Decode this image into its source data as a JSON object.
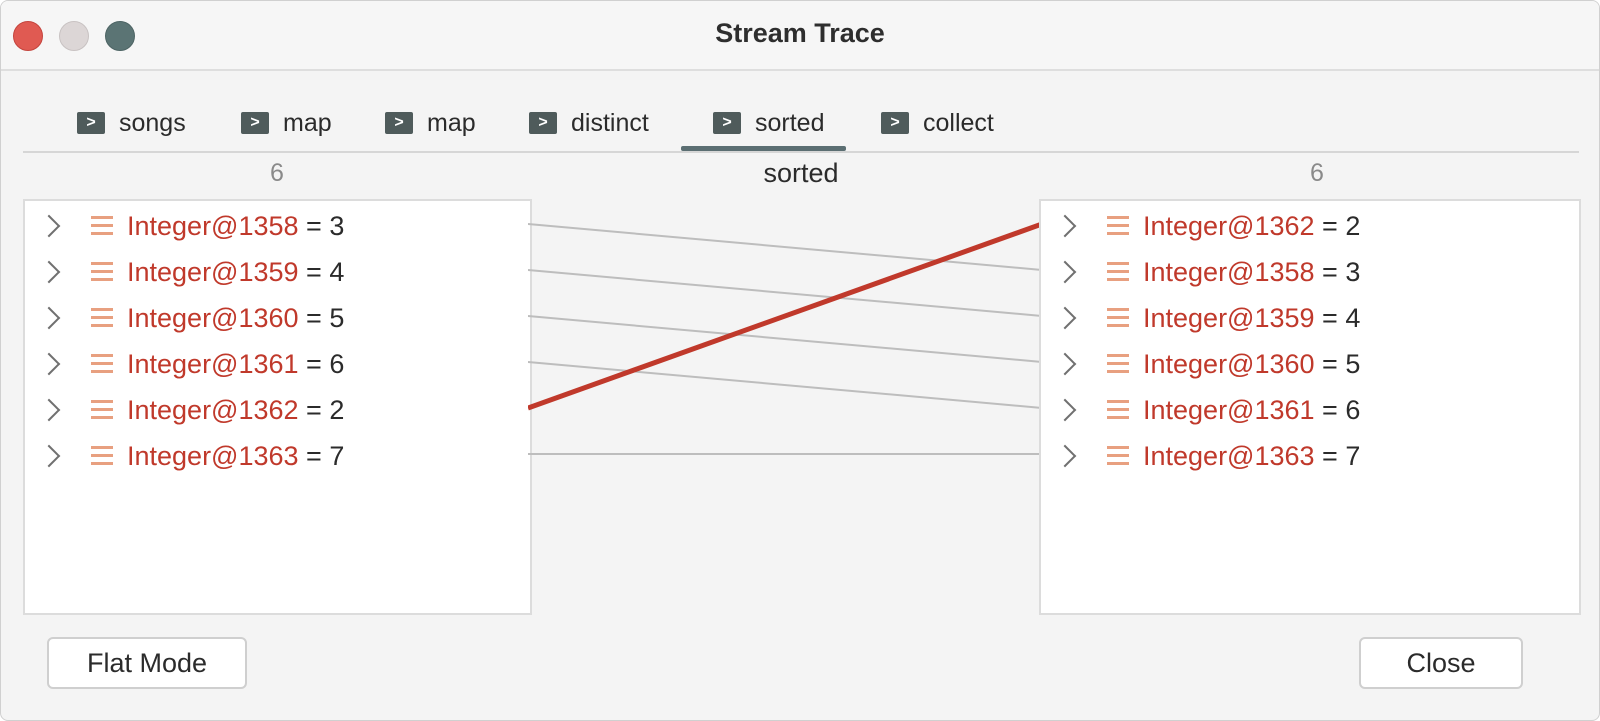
{
  "window": {
    "title": "Stream Trace"
  },
  "tabs": [
    {
      "label": "songs",
      "active": false
    },
    {
      "label": "map",
      "active": false
    },
    {
      "label": "map",
      "active": false
    },
    {
      "label": "distinct",
      "active": false
    },
    {
      "label": "sorted",
      "active": true
    },
    {
      "label": "collect",
      "active": false
    }
  ],
  "center": {
    "label": "sorted"
  },
  "left_panel": {
    "count": "6",
    "items": [
      {
        "name": "Integer@1358",
        "value": "3"
      },
      {
        "name": "Integer@1359",
        "value": "4"
      },
      {
        "name": "Integer@1360",
        "value": "5"
      },
      {
        "name": "Integer@1361",
        "value": "6"
      },
      {
        "name": "Integer@1362",
        "value": "2"
      },
      {
        "name": "Integer@1363",
        "value": "7"
      }
    ]
  },
  "right_panel": {
    "count": "6",
    "items": [
      {
        "name": "Integer@1362",
        "value": "2"
      },
      {
        "name": "Integer@1358",
        "value": "3"
      },
      {
        "name": "Integer@1359",
        "value": "4"
      },
      {
        "name": "Integer@1360",
        "value": "5"
      },
      {
        "name": "Integer@1361",
        "value": "6"
      },
      {
        "name": "Integer@1363",
        "value": "7"
      }
    ]
  },
  "mapping": [
    {
      "from": 0,
      "to": 1,
      "highlighted": false
    },
    {
      "from": 1,
      "to": 2,
      "highlighted": false
    },
    {
      "from": 2,
      "to": 3,
      "highlighted": false
    },
    {
      "from": 3,
      "to": 4,
      "highlighted": false
    },
    {
      "from": 4,
      "to": 0,
      "highlighted": true
    },
    {
      "from": 5,
      "to": 5,
      "highlighted": false
    }
  ],
  "buttons": {
    "flat_mode": "Flat Mode",
    "close": "Close"
  },
  "colors": {
    "object_name": "#c0392b",
    "highlight_line": "#c0392b",
    "line": "#bdbdbd"
  },
  "icons": {
    "tab": "play-arrow-icon",
    "item": "stack-icon",
    "expand": "chevron-right-icon"
  }
}
